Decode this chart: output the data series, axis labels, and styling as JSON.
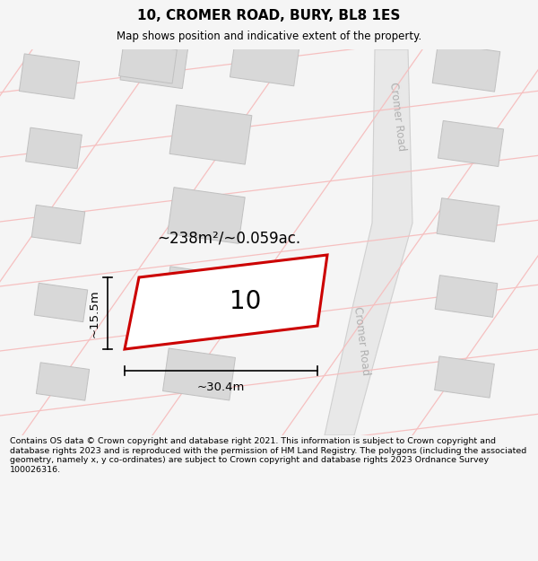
{
  "title": "10, CROMER ROAD, BURY, BL8 1ES",
  "subtitle": "Map shows position and indicative extent of the property.",
  "footer": "Contains OS data © Crown copyright and database right 2021. This information is subject to Crown copyright and database rights 2023 and is reproduced with the permission of HM Land Registry. The polygons (including the associated geometry, namely x, y co-ordinates) are subject to Crown copyright and database rights 2023 Ordnance Survey 100026316.",
  "bg_color": "#f5f5f5",
  "map_bg": "#ffffff",
  "road_label": "Cromer Road",
  "road_label2": "Cromer Road",
  "building_color": "#d8d8d8",
  "building_edge": "#c0c0c0",
  "street_line_color": "#f5c0c0",
  "property_color": "#ffffff",
  "property_edge": "#cc0000",
  "property_label": "10",
  "area_label": "~238m²/~0.059ac.",
  "dim_h_label": "~30.4m",
  "dim_v_label": "~15.5m",
  "road_color": "#e8e8e8",
  "road_edge": "#d0d0d0"
}
